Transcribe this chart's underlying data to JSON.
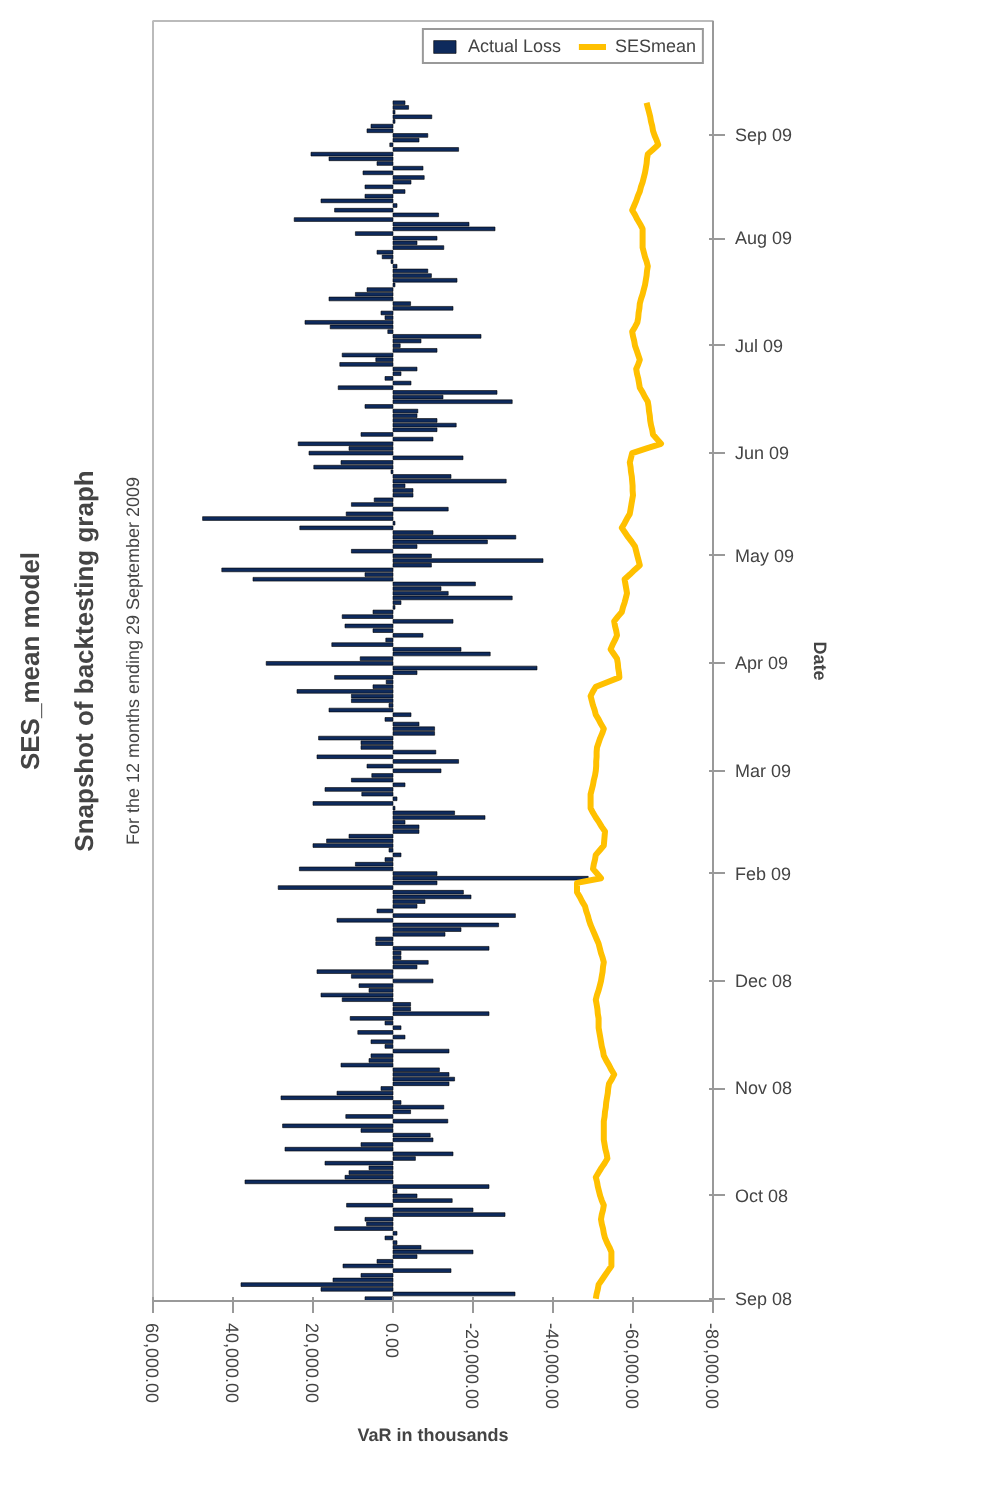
{
  "chart_data": {
    "type": "bar",
    "orientation": "horizontal",
    "title": "SES_mean model",
    "subtitle": "Snapshot of backtesting graph",
    "annotations": [
      "For the 12 months ending 29 September 2009"
    ],
    "xlabel": "VaR in thousands",
    "ylabel": "Date",
    "categories": [
      null,
      null,
      null,
      null,
      null,
      null,
      null,
      "Sep 09",
      null,
      null,
      null,
      null,
      null,
      null,
      null,
      null,
      null,
      null,
      null,
      null,
      null,
      null,
      null,
      null,
      null,
      null,
      null,
      null,
      null,
      "Aug 09",
      null,
      null,
      null,
      null,
      null,
      null,
      null,
      null,
      null,
      null,
      null,
      null,
      null,
      null,
      null,
      null,
      null,
      null,
      null,
      null,
      null,
      null,
      "Jul 09",
      null,
      null,
      null,
      null,
      null,
      null,
      null,
      null,
      null,
      null,
      null,
      null,
      null,
      null,
      null,
      null,
      null,
      null,
      null,
      null,
      null,
      null,
      "Jun 09",
      null,
      null,
      null,
      null,
      null,
      null,
      null,
      null,
      null,
      null,
      null,
      null,
      null,
      null,
      null,
      null,
      null,
      null,
      null,
      null,
      null,
      "May 09",
      null,
      null,
      null,
      null,
      null,
      null,
      null,
      null,
      null,
      null,
      null,
      null,
      null,
      null,
      null,
      null,
      null,
      null,
      null,
      null,
      null,
      null,
      "Apr 09",
      null,
      null,
      null,
      null,
      null,
      null,
      null,
      null,
      null,
      null,
      null,
      null,
      null,
      null,
      null,
      null,
      null,
      null,
      null,
      null,
      null,
      null,
      "Mar 09",
      null,
      null,
      null,
      null,
      null,
      null,
      null,
      null,
      null,
      null,
      null,
      null,
      null,
      null,
      null,
      null,
      null,
      null,
      null,
      null,
      null,
      "Feb 09",
      null,
      null,
      null,
      null,
      null,
      null,
      null,
      null,
      null,
      null,
      null,
      null,
      null,
      null,
      null,
      null,
      null,
      null,
      null,
      null,
      null,
      null,
      "Dec 08",
      null,
      null,
      null,
      null,
      null,
      null,
      null,
      null,
      null,
      null,
      null,
      null,
      null,
      null,
      null,
      null,
      null,
      null,
      null,
      null,
      null,
      null,
      "Nov 08",
      null,
      null,
      null,
      null,
      null,
      null,
      null,
      null,
      null,
      null,
      null,
      null,
      null,
      null,
      null,
      null,
      null,
      null,
      null,
      null,
      null,
      null,
      "Oct 08",
      null,
      null,
      null,
      null,
      null,
      null,
      null,
      null,
      null,
      null,
      null,
      null,
      null,
      null,
      null,
      null,
      null,
      null,
      null,
      null,
      null,
      "Sep 08"
    ],
    "series": [
      {
        "name": "Actual Loss",
        "color": "#0e2a5c",
        "values": [
          -3000,
          -3900,
          -500,
          -9700,
          -500,
          5500,
          6500,
          -8700,
          -6500,
          800,
          -16400,
          20500,
          16000,
          4000,
          -7500,
          7500,
          -7800,
          -4500,
          7000,
          -3000,
          7000,
          18000,
          -1000,
          14600,
          -11400,
          24700,
          -19000,
          -25500,
          9400,
          -11000,
          -6000,
          -12700,
          4000,
          2700,
          500,
          -1000,
          -8700,
          -9600,
          -16000,
          -500,
          6500,
          9400,
          16000,
          -4400,
          -15000,
          3000,
          2000,
          22000,
          15700,
          1300,
          -22000,
          -7000,
          -1800,
          -11000,
          12700,
          4300,
          13300,
          -6000,
          -2000,
          2000,
          -4500,
          13700,
          -26000,
          -12500,
          -29800,
          7000,
          -6200,
          -6000,
          -11000,
          -15800,
          -11000,
          8000,
          -10000,
          23700,
          11000,
          21000,
          -17500,
          13000,
          19800,
          500,
          -14500,
          -28300,
          -3000,
          -5000,
          -5000,
          4700,
          10400,
          -13800,
          11700,
          47600,
          -500,
          23300,
          -10000,
          -30700,
          -23600,
          -6000,
          10400,
          -9600,
          -37500,
          -9600,
          42800,
          7000,
          35000,
          -20600,
          -12000,
          -13800,
          -29800,
          -2000,
          -500,
          5000,
          12700,
          -15000,
          12000,
          5000,
          -7500,
          1800,
          15300,
          -17000,
          -24300,
          8200,
          31700,
          -36000,
          -6000,
          14600,
          1700,
          5000,
          24000,
          10400,
          10400,
          1000,
          16000,
          -4500,
          2000,
          -6500,
          -10400,
          -10400,
          18600,
          8000,
          8000,
          -10700,
          19000,
          -16400,
          6500,
          -12000,
          5300,
          10400,
          -3000,
          17000,
          7800,
          -1000,
          20000,
          -500,
          -15400,
          -23000,
          -3000,
          -6500,
          -6500,
          11000,
          16600,
          20000,
          1000,
          -2000,
          2000,
          9400,
          23400,
          -11000,
          -48800,
          -11000,
          28700,
          -17600,
          -19500,
          -8000,
          -6000,
          4000,
          -30600,
          14000,
          -26400,
          -17000,
          -13000,
          4300,
          4300,
          -24000,
          -2000,
          -2000,
          -8800,
          -6000,
          19000,
          10400,
          -10000,
          8500,
          6000,
          18000,
          12700,
          -4400,
          -4400,
          -24000,
          10700,
          2000,
          -2000,
          8800,
          -3000,
          5500,
          2000,
          -14000,
          5500,
          6000,
          13000,
          -11600,
          -14000,
          -15400,
          -14000,
          3000,
          14000,
          28000,
          -2000,
          -12700,
          -4400,
          11800,
          -13700,
          27600,
          8000,
          -9300,
          -10000,
          8000,
          27000,
          -15000,
          -5600,
          17000,
          6000,
          11000,
          12000,
          37000,
          -24000,
          -1000,
          -6000,
          -14800,
          11600,
          -20000,
          -28000,
          7000,
          6600,
          14600,
          -1000,
          2000,
          -1000,
          -7000,
          -20000,
          -6000,
          4000,
          12500,
          -14500,
          8000,
          15000,
          38000,
          18000,
          -30500,
          7000
        ]
      },
      {
        "name": "SESmean",
        "type": "line",
        "color": "#ffc000",
        "values": [
          -63400,
          -63700,
          -64000,
          -64300,
          -64500,
          -64800,
          -65000,
          -65400,
          -65900,
          -66300,
          -65000,
          -63700,
          -63500,
          -63400,
          -63200,
          -63000,
          -62700,
          -62400,
          -62000,
          -61700,
          -61200,
          -60800,
          -60300,
          -59800,
          -60500,
          -61100,
          -61800,
          -62400,
          -62400,
          -62400,
          -62400,
          -62400,
          -62700,
          -63000,
          -63400,
          -63700,
          -63500,
          -63400,
          -63200,
          -63000,
          -62700,
          -62400,
          -62000,
          -61700,
          -61600,
          -61400,
          -61300,
          -61100,
          -60500,
          -59800,
          -60000,
          -60300,
          -60500,
          -60900,
          -61300,
          -61700,
          -61300,
          -60800,
          -61000,
          -61300,
          -61500,
          -61700,
          -62400,
          -63000,
          -63700,
          -63900,
          -64000,
          -64200,
          -64300,
          -64500,
          -64800,
          -65000,
          -66000,
          -67000,
          -63400,
          -59800,
          -59500,
          -59200,
          -59400,
          -59500,
          -59700,
          -59800,
          -59900,
          -59900,
          -60000,
          -59800,
          -59600,
          -59400,
          -59200,
          -58500,
          -57900,
          -57200,
          -58000,
          -58800,
          -59700,
          -60500,
          -60800,
          -61100,
          -61400,
          -61700,
          -60400,
          -59200,
          -57900,
          -58100,
          -58300,
          -58500,
          -58200,
          -57900,
          -57500,
          -57200,
          -56200,
          -55300,
          -55500,
          -55800,
          -56000,
          -55500,
          -54900,
          -54400,
          -55200,
          -56000,
          -56200,
          -56300,
          -56500,
          -56600,
          -53700,
          -50700,
          -50000,
          -49400,
          -49700,
          -50000,
          -50400,
          -50700,
          -51400,
          -52000,
          -52700,
          -52300,
          -51800,
          -51400,
          -51000,
          -50900,
          -50900,
          -50800,
          -50800,
          -50700,
          -50500,
          -50200,
          -50000,
          -49700,
          -49400,
          -49400,
          -49400,
          -49400,
          -50000,
          -50700,
          -51500,
          -52200,
          -53000,
          -52900,
          -52800,
          -52700,
          -51700,
          -50700,
          -50500,
          -50200,
          -50000,
          -51000,
          -52000,
          -46000,
          -46000,
          -46000,
          -46700,
          -47300,
          -48000,
          -48300,
          -48700,
          -49000,
          -49400,
          -49900,
          -50400,
          -50900,
          -51400,
          -51700,
          -52000,
          -52400,
          -52700,
          -52500,
          -52400,
          -52200,
          -52000,
          -51700,
          -51400,
          -51000,
          -50700,
          -50900,
          -51100,
          -51200,
          -51400,
          -51400,
          -51400,
          -51600,
          -51800,
          -52000,
          -52200,
          -52500,
          -52700,
          -53300,
          -54000,
          -54600,
          -55300,
          -54700,
          -54000,
          -53800,
          -53700,
          -53500,
          -53300,
          -53200,
          -53000,
          -52900,
          -52700,
          -52700,
          -52700,
          -52700,
          -52700,
          -52900,
          -53100,
          -53400,
          -53600,
          -52900,
          -52100,
          -51400,
          -50700,
          -51000,
          -51200,
          -51500,
          -51800,
          -52200,
          -52700,
          -52500,
          -52200,
          -52000,
          -52200,
          -52500,
          -52700,
          -53000,
          -53500,
          -54100,
          -54600,
          -54600,
          -54600,
          -54600,
          -53800,
          -53000,
          -52200,
          -51400,
          -51200,
          -50900,
          -50700
        ]
      }
    ],
    "xlim": [
      60000,
      -80000
    ],
    "xticks": [
      {
        "value": 60000,
        "label": "60,000.00"
      },
      {
        "value": 40000,
        "label": "40,000.00"
      },
      {
        "value": 20000,
        "label": "20,000.00"
      },
      {
        "value": 0,
        "label": "0.00"
      },
      {
        "value": -20000,
        "label": "-20,000.00"
      },
      {
        "value": -40000,
        "label": "-40,000.00"
      },
      {
        "value": -60000,
        "label": "-60,000.00"
      },
      {
        "value": -80000,
        "label": "-80,000.00"
      }
    ],
    "grid": false,
    "legend": "top right"
  }
}
